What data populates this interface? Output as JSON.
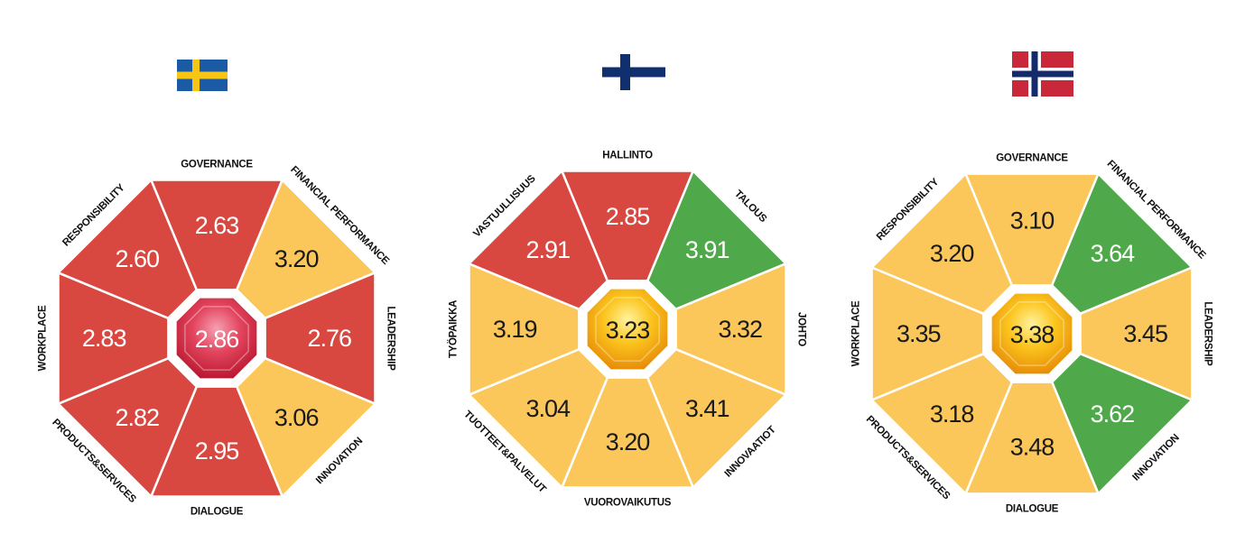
{
  "colors": {
    "red": "#d94840",
    "yellow": "#fbc75a",
    "green": "#4fa84a",
    "ring": "#ffffff",
    "dark_text": "#1a1a1a",
    "light_text": "#ffffff",
    "sweden_blue": "#1b5aa5",
    "sweden_yellow": "#f6c515",
    "finland_blue": "#102f6e",
    "norway_red": "#c8283a",
    "norway_blue": "#142a6b"
  },
  "chart_data": [
    {
      "type": "octagon-scorecard",
      "country": "Sweden",
      "flag_icon": "sweden-flag-icon",
      "center": {
        "value": "2.86",
        "status": "red"
      },
      "segments": [
        {
          "label": "GOVERNANCE",
          "value": "2.63",
          "status": "red"
        },
        {
          "label": "FINANCIAL PERFORMANCE",
          "value": "3.20",
          "status": "yellow"
        },
        {
          "label": "LEADERSHIP",
          "value": "2.76",
          "status": "red"
        },
        {
          "label": "INNOVATION",
          "value": "3.06",
          "status": "yellow"
        },
        {
          "label": "DIALOGUE",
          "value": "2.95",
          "status": "red"
        },
        {
          "label": "PRODUCTS&SERVICES",
          "value": "2.82",
          "status": "red"
        },
        {
          "label": "WORKPLACE",
          "value": "2.83",
          "status": "red"
        },
        {
          "label": "RESPONSIBILITY",
          "value": "2.60",
          "status": "red"
        }
      ]
    },
    {
      "type": "octagon-scorecard",
      "country": "Finland",
      "flag_icon": "finland-flag-icon",
      "center": {
        "value": "3.23",
        "status": "yellow"
      },
      "segments": [
        {
          "label": "HALLINTO",
          "value": "2.85",
          "status": "red"
        },
        {
          "label": "TALOUS",
          "value": "3.91",
          "status": "green"
        },
        {
          "label": "JOHTO",
          "value": "3.32",
          "status": "yellow"
        },
        {
          "label": "INNOVAATIOT",
          "value": "3.41",
          "status": "yellow"
        },
        {
          "label": "VUOROVAIKUTUS",
          "value": "3.20",
          "status": "yellow"
        },
        {
          "label": "TUOTTEET&PALVELUT",
          "value": "3.04",
          "status": "yellow"
        },
        {
          "label": "TYÖPAIKKA",
          "value": "3.19",
          "status": "yellow"
        },
        {
          "label": "VASTUULLISUUS",
          "value": "2.91",
          "status": "red"
        }
      ]
    },
    {
      "type": "octagon-scorecard",
      "country": "Norway",
      "flag_icon": "norway-flag-icon",
      "center": {
        "value": "3.38",
        "status": "yellow"
      },
      "segments": [
        {
          "label": "GOVERNANCE",
          "value": "3.10",
          "status": "yellow"
        },
        {
          "label": "FINANCIAL PERFORMANCE",
          "value": "3.64",
          "status": "green"
        },
        {
          "label": "LEADERSHIP",
          "value": "3.45",
          "status": "yellow"
        },
        {
          "label": "INNOVATION",
          "value": "3.62",
          "status": "green"
        },
        {
          "label": "DIALOGUE",
          "value": "3.48",
          "status": "yellow"
        },
        {
          "label": "PRODUCTS&SERVICES",
          "value": "3.18",
          "status": "yellow"
        },
        {
          "label": "WORKPLACE",
          "value": "3.35",
          "status": "yellow"
        },
        {
          "label": "RESPONSIBILITY",
          "value": "3.20",
          "status": "yellow"
        }
      ]
    }
  ]
}
